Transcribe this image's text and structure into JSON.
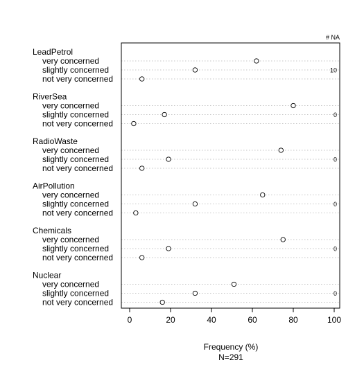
{
  "chart_data": {
    "type": "dotplot",
    "na_header": "# NA",
    "xlabel": "Frequency (%)",
    "sample_note": "N=291",
    "xlim": [
      0,
      100
    ],
    "x_ticks": [
      0,
      20,
      40,
      60,
      80,
      100
    ],
    "grid": "dotted horizontal",
    "groups": [
      {
        "name": "LeadPetrol",
        "na": "10",
        "items": [
          {
            "label": "very concerned",
            "value": 62
          },
          {
            "label": "slightly concerned",
            "value": 32
          },
          {
            "label": "not very concerned",
            "value": 6
          }
        ]
      },
      {
        "name": "RiverSea",
        "na": "0",
        "items": [
          {
            "label": "very concerned",
            "value": 80
          },
          {
            "label": "slightly concerned",
            "value": 17
          },
          {
            "label": "not very concerned",
            "value": 2
          }
        ]
      },
      {
        "name": "RadioWaste",
        "na": "0",
        "items": [
          {
            "label": "very concerned",
            "value": 74
          },
          {
            "label": "slightly concerned",
            "value": 19
          },
          {
            "label": "not very concerned",
            "value": 6
          }
        ]
      },
      {
        "name": "AirPollution",
        "na": "0",
        "items": [
          {
            "label": "very concerned",
            "value": 65
          },
          {
            "label": "slightly concerned",
            "value": 32
          },
          {
            "label": "not very concerned",
            "value": 3
          }
        ]
      },
      {
        "name": "Chemicals",
        "na": "0",
        "items": [
          {
            "label": "very concerned",
            "value": 75
          },
          {
            "label": "slightly concerned",
            "value": 19
          },
          {
            "label": "not very concerned",
            "value": 6
          }
        ]
      },
      {
        "name": "Nuclear",
        "na": "0",
        "items": [
          {
            "label": "very concerned",
            "value": 51
          },
          {
            "label": "slightly concerned",
            "value": 32
          },
          {
            "label": "not very concerned",
            "value": 16
          }
        ]
      }
    ]
  }
}
